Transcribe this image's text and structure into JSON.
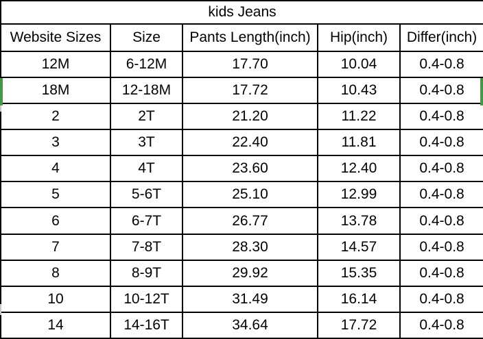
{
  "page": {
    "background": "#ffffff",
    "border_color": "#000000",
    "text_color": "#000000"
  },
  "chart_data": {
    "type": "table",
    "title": "kids Jeans",
    "columns": [
      "Website Sizes",
      "Size",
      "Pants Length(inch)",
      "Hip(inch)",
      "Differ(inch)"
    ],
    "rows": [
      [
        "12M",
        "6-12M",
        "17.70",
        "10.04",
        "0.4-0.8"
      ],
      [
        "18M",
        "12-18M",
        "17.72",
        "10.43",
        "0.4-0.8"
      ],
      [
        "2",
        "2T",
        "21.20",
        "11.22",
        "0.4-0.8"
      ],
      [
        "3",
        "3T",
        "22.40",
        "11.81",
        "0.4-0.8"
      ],
      [
        "4",
        "4T",
        "23.60",
        "12.40",
        "0.4-0.8"
      ],
      [
        "5",
        "5-6T",
        "25.10",
        "12.99",
        "0.4-0.8"
      ],
      [
        "6",
        "6-7T",
        "26.77",
        "13.78",
        "0.4-0.8"
      ],
      [
        "7",
        "7-8T",
        "28.30",
        "14.57",
        "0.4-0.8"
      ],
      [
        "8",
        "8-9T",
        "29.92",
        "15.35",
        "0.4-0.8"
      ],
      [
        "10",
        "10-12T",
        "31.49",
        "16.14",
        "0.4-0.8"
      ],
      [
        "14",
        "14-16T",
        "34.64",
        "17.72",
        "0.4-0.8"
      ]
    ],
    "selected_row_label": "18M",
    "selected_row_index": 1,
    "selection_color": "#459745",
    "legend_position": "none",
    "grid": true
  }
}
